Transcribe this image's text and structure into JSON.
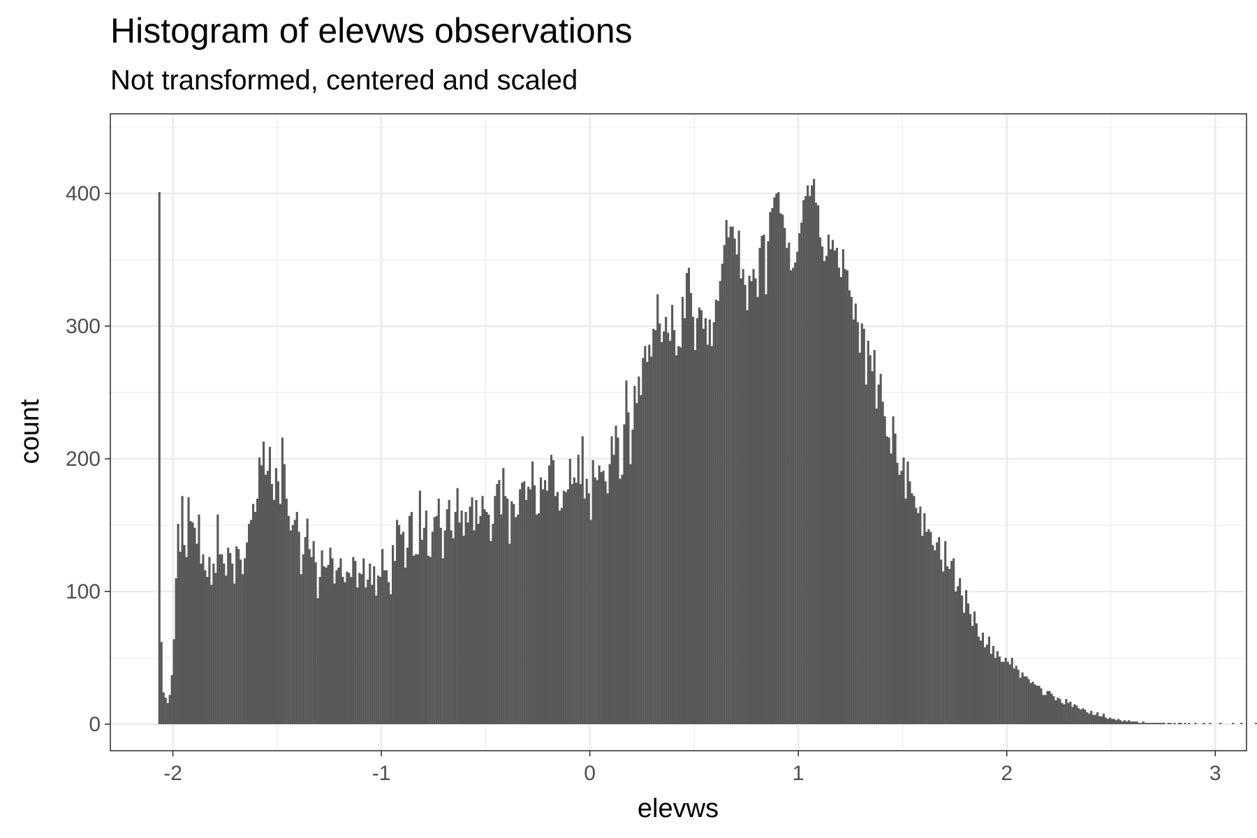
{
  "chart_data": {
    "type": "bar",
    "title": "Histogram of elevws observations",
    "subtitle": "Not transformed, centered and scaled",
    "xlabel": "elevws",
    "ylabel": "count",
    "xlim": [
      -2.3,
      3.15
    ],
    "ylim": [
      -20,
      460
    ],
    "x_ticks": [
      -2,
      -1,
      0,
      1,
      2,
      3
    ],
    "y_ticks": [
      0,
      100,
      200,
      300,
      400
    ],
    "grid": true,
    "bar_color": "#595959",
    "bin_width": 0.01,
    "x_start": -2.07,
    "counts": [
      401,
      62,
      24,
      20,
      16,
      22,
      37,
      64,
      110,
      151,
      130,
      172,
      135,
      126,
      171,
      153,
      152,
      148,
      136,
      158,
      121,
      128,
      116,
      111,
      126,
      105,
      121,
      114,
      158,
      128,
      128,
      121,
      112,
      133,
      129,
      121,
      106,
      134,
      132,
      124,
      113,
      125,
      137,
      151,
      154,
      166,
      160,
      170,
      201,
      195,
      213,
      188,
      191,
      209,
      181,
      169,
      193,
      183,
      166,
      216,
      196,
      170,
      157,
      146,
      150,
      154,
      160,
      145,
      113,
      128,
      141,
      155,
      132,
      126,
      138,
      122,
      95,
      111,
      131,
      119,
      118,
      120,
      133,
      125,
      106,
      116,
      118,
      125,
      111,
      107,
      115,
      114,
      111,
      126,
      123,
      103,
      114,
      113,
      125,
      103,
      109,
      121,
      105,
      119,
      97,
      112,
      111,
      132,
      116,
      116,
      107,
      98,
      135,
      123,
      154,
      150,
      143,
      145,
      118,
      133,
      157,
      160,
      127,
      128,
      128,
      176,
      139,
      148,
      161,
      127,
      126,
      145,
      156,
      157,
      170,
      148,
      125,
      146,
      162,
      169,
      146,
      140,
      160,
      178,
      152,
      161,
      142,
      160,
      152,
      164,
      171,
      146,
      169,
      151,
      157,
      172,
      162,
      160,
      158,
      138,
      151,
      172,
      181,
      184,
      158,
      193,
      172,
      170,
      136,
      168,
      166,
      156,
      158,
      177,
      182,
      183,
      169,
      179,
      177,
      198,
      180,
      158,
      159,
      186,
      177,
      184,
      176,
      195,
      203,
      199,
      172,
      175,
      161,
      163,
      176,
      175,
      177,
      200,
      181,
      186,
      182,
      203,
      181,
      217,
      170,
      185,
      174,
      154,
      199,
      186,
      184,
      195,
      190,
      191,
      183,
      174,
      196,
      217,
      203,
      225,
      216,
      185,
      188,
      226,
      259,
      235,
      196,
      222,
      255,
      242,
      262,
      248,
      276,
      285,
      273,
      286,
      277,
      298,
      297,
      324,
      302,
      288,
      296,
      307,
      295,
      289,
      316,
      297,
      278,
      285,
      284,
      322,
      306,
      340,
      344,
      325,
      307,
      282,
      306,
      314,
      312,
      298,
      306,
      286,
      305,
      285,
      303,
      320,
      319,
      334,
      347,
      361,
      380,
      367,
      375,
      375,
      366,
      354,
      372,
      336,
      343,
      331,
      312,
      338,
      334,
      343,
      336,
      322,
      359,
      368,
      369,
      324,
      364,
      386,
      389,
      397,
      400,
      401,
      385,
      384,
      374,
      359,
      363,
      342,
      344,
      348,
      356,
      370,
      378,
      395,
      398,
      406,
      398,
      406,
      411,
      393,
      391,
      367,
      360,
      349,
      353,
      369,
      358,
      365,
      357,
      359,
      344,
      337,
      358,
      343,
      342,
      327,
      322,
      305,
      317,
      303,
      280,
      302,
      298,
      256,
      289,
      278,
      266,
      282,
      238,
      256,
      264,
      243,
      232,
      217,
      216,
      204,
      232,
      219,
      197,
      188,
      191,
      201,
      170,
      198,
      183,
      174,
      172,
      163,
      159,
      164,
      142,
      159,
      145,
      147,
      145,
      135,
      131,
      137,
      141,
      124,
      115,
      138,
      119,
      117,
      123,
      125,
      100,
      104,
      110,
      97,
      84,
      101,
      91,
      83,
      74,
      85,
      76,
      66,
      63,
      69,
      58,
      60,
      66,
      53,
      59,
      50,
      55,
      51,
      47,
      47,
      50,
      47,
      45,
      50,
      42,
      44,
      41,
      35,
      39,
      36,
      36,
      34,
      31,
      32,
      30,
      29,
      29,
      27,
      22,
      22,
      25,
      25,
      23,
      21,
      18,
      20,
      19,
      16,
      15,
      19,
      16,
      17,
      13,
      15,
      14,
      12,
      11,
      12,
      11,
      9,
      8,
      10,
      7,
      7,
      9,
      6,
      6,
      8,
      5,
      4,
      5,
      4,
      4,
      3,
      4,
      3,
      2,
      3,
      2,
      3,
      2,
      2,
      2,
      2,
      1,
      1,
      2,
      1,
      1,
      1,
      1,
      1,
      1,
      1,
      1,
      1,
      1,
      0,
      1,
      1,
      0,
      1,
      0,
      1,
      1,
      0,
      1,
      0,
      1,
      0,
      0,
      1,
      0,
      0,
      0,
      1,
      0,
      0,
      1,
      0,
      0,
      0,
      0,
      1,
      0,
      0,
      0,
      0,
      0,
      1,
      0,
      0,
      0,
      1,
      0,
      0,
      0,
      0,
      0,
      0,
      1
    ]
  }
}
